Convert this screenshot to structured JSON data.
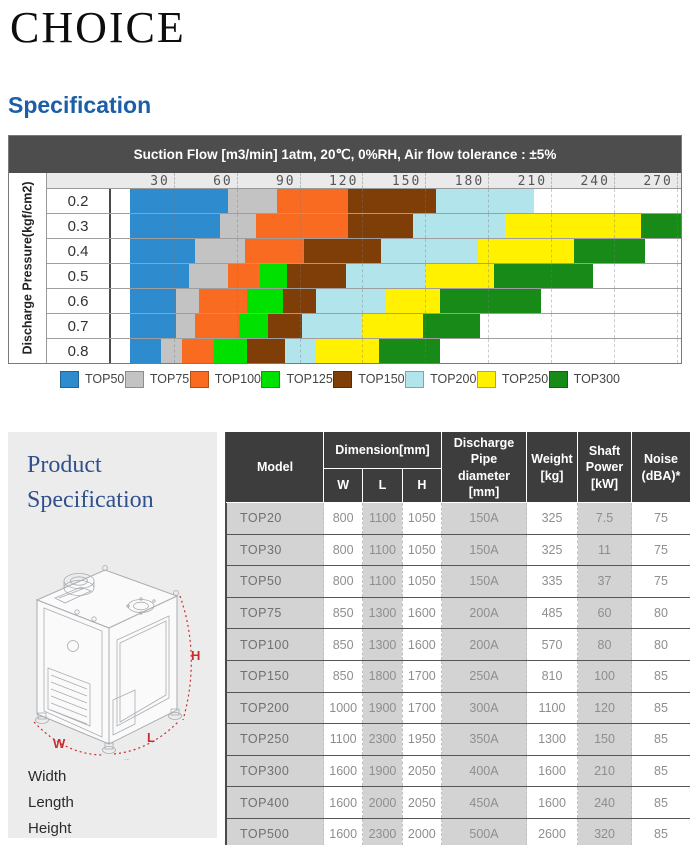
{
  "page": {
    "title": "CHOICE",
    "section_heading": "Specification"
  },
  "chart_data": {
    "type": "bar",
    "subtype": "horizontal-range-segments",
    "title": "Suction Flow [m3/min] 1atm, 20℃, 0%RH, Air flow tolerance : ±5%",
    "ylabel": "Discharge Pressure(kgf/cm2)",
    "xlabel": "Suction Flow [m3/min]",
    "x_ticks": [
      30,
      60,
      90,
      120,
      150,
      180,
      210,
      240,
      270
    ],
    "xlim": [
      0,
      272
    ],
    "grid": true,
    "legend_position": "bottom",
    "legend": [
      {
        "name": "TOP50",
        "color": "#2e8bce"
      },
      {
        "name": "TOP75",
        "color": "#c3c3c3"
      },
      {
        "name": "TOP100",
        "color": "#f96b20"
      },
      {
        "name": "TOP125",
        "color": "#00e100"
      },
      {
        "name": "TOP150",
        "color": "#7f3e08"
      },
      {
        "name": "TOP200",
        "color": "#b2e4ec"
      },
      {
        "name": "TOP250",
        "color": "#fff100"
      },
      {
        "name": "TOP300",
        "color": "#188a18"
      }
    ],
    "rows": [
      {
        "pressure": "0.2",
        "segments": [
          {
            "model": "TOP50",
            "from": 9,
            "to": 56
          },
          {
            "model": "TOP75",
            "from": 56,
            "to": 79
          },
          {
            "model": "TOP100",
            "from": 79,
            "to": 113
          },
          {
            "model": "TOP150",
            "from": 113,
            "to": 155
          },
          {
            "model": "TOP200",
            "from": 155,
            "to": 202
          }
        ]
      },
      {
        "pressure": "0.3",
        "segments": [
          {
            "model": "TOP50",
            "from": 9,
            "to": 52
          },
          {
            "model": "TOP75",
            "from": 52,
            "to": 69
          },
          {
            "model": "TOP100",
            "from": 69,
            "to": 113
          },
          {
            "model": "TOP150",
            "from": 113,
            "to": 144
          },
          {
            "model": "TOP200",
            "from": 144,
            "to": 188
          },
          {
            "model": "TOP250",
            "from": 188,
            "to": 253
          },
          {
            "model": "TOP300",
            "from": 253,
            "to": 272
          }
        ]
      },
      {
        "pressure": "0.4",
        "segments": [
          {
            "model": "TOP50",
            "from": 9,
            "to": 40
          },
          {
            "model": "TOP75",
            "from": 40,
            "to": 64
          },
          {
            "model": "TOP100",
            "from": 64,
            "to": 92
          },
          {
            "model": "TOP150",
            "from": 92,
            "to": 129
          },
          {
            "model": "TOP200",
            "from": 129,
            "to": 175
          },
          {
            "model": "TOP250",
            "from": 175,
            "to": 221
          },
          {
            "model": "TOP300",
            "from": 221,
            "to": 255
          }
        ]
      },
      {
        "pressure": "0.5",
        "segments": [
          {
            "model": "TOP50",
            "from": 9,
            "to": 37
          },
          {
            "model": "TOP75",
            "from": 37,
            "to": 56
          },
          {
            "model": "TOP100",
            "from": 56,
            "to": 71
          },
          {
            "model": "TOP125",
            "from": 71,
            "to": 84
          },
          {
            "model": "TOP150",
            "from": 84,
            "to": 112
          },
          {
            "model": "TOP200",
            "from": 112,
            "to": 150
          },
          {
            "model": "TOP250",
            "from": 150,
            "to": 183
          },
          {
            "model": "TOP300",
            "from": 183,
            "to": 230
          }
        ]
      },
      {
        "pressure": "0.6",
        "segments": [
          {
            "model": "TOP50",
            "from": 9,
            "to": 31
          },
          {
            "model": "TOP75",
            "from": 31,
            "to": 42
          },
          {
            "model": "TOP100",
            "from": 42,
            "to": 65
          },
          {
            "model": "TOP125",
            "from": 65,
            "to": 82
          },
          {
            "model": "TOP150",
            "from": 82,
            "to": 98
          },
          {
            "model": "TOP200",
            "from": 98,
            "to": 131
          },
          {
            "model": "TOP250",
            "from": 131,
            "to": 157
          },
          {
            "model": "TOP300",
            "from": 157,
            "to": 205
          }
        ]
      },
      {
        "pressure": "0.7",
        "segments": [
          {
            "model": "TOP50",
            "from": 9,
            "to": 31
          },
          {
            "model": "TOP75",
            "from": 31,
            "to": 40
          },
          {
            "model": "TOP100",
            "from": 40,
            "to": 61
          },
          {
            "model": "TOP125",
            "from": 61,
            "to": 75
          },
          {
            "model": "TOP150",
            "from": 75,
            "to": 91
          },
          {
            "model": "TOP200",
            "from": 91,
            "to": 120
          },
          {
            "model": "TOP250",
            "from": 120,
            "to": 149
          },
          {
            "model": "TOP300",
            "from": 149,
            "to": 176
          }
        ]
      },
      {
        "pressure": "0.8",
        "segments": [
          {
            "model": "TOP50",
            "from": 9,
            "to": 24
          },
          {
            "model": "TOP75",
            "from": 24,
            "to": 34
          },
          {
            "model": "TOP100",
            "from": 34,
            "to": 49
          },
          {
            "model": "TOP125",
            "from": 49,
            "to": 65
          },
          {
            "model": "TOP150",
            "from": 65,
            "to": 83
          },
          {
            "model": "TOP200",
            "from": 83,
            "to": 98
          },
          {
            "model": "TOP250",
            "from": 98,
            "to": 128
          },
          {
            "model": "TOP300",
            "from": 128,
            "to": 157
          }
        ]
      }
    ]
  },
  "product": {
    "heading_line1": "Product",
    "heading_line2": "Specification",
    "dim_w": "W",
    "dim_l": "L",
    "dim_h": "H",
    "dim_color": "#cb2d2d",
    "dim_labels": [
      "Width",
      "Length",
      "Height"
    ]
  },
  "table": {
    "header": {
      "model": "Model",
      "dimension_group": "Dimension[mm]",
      "w": "W",
      "l": "L",
      "h": "H",
      "discharge": "Discharge Pipe diameter [mm]",
      "weight": "Weight [kg]",
      "power": "Shaft Power [kW]",
      "noise": "Noise (dBA)*"
    },
    "rows": [
      {
        "model": "TOP20",
        "w": "800",
        "l": "1100",
        "h": "1050",
        "discharge": "150A",
        "weight": "325",
        "power": "7.5",
        "noise": "75"
      },
      {
        "model": "TOP30",
        "w": "800",
        "l": "1100",
        "h": "1050",
        "discharge": "150A",
        "weight": "325",
        "power": "11",
        "noise": "75"
      },
      {
        "model": "TOP50",
        "w": "800",
        "l": "1100",
        "h": "1050",
        "discharge": "150A",
        "weight": "335",
        "power": "37",
        "noise": "75"
      },
      {
        "model": "TOP75",
        "w": "850",
        "l": "1300",
        "h": "1600",
        "discharge": "200A",
        "weight": "485",
        "power": "60",
        "noise": "80"
      },
      {
        "model": "TOP100",
        "w": "850",
        "l": "1300",
        "h": "1600",
        "discharge": "200A",
        "weight": "570",
        "power": "80",
        "noise": "80"
      },
      {
        "model": "TOP150",
        "w": "850",
        "l": "1800",
        "h": "1700",
        "discharge": "250A",
        "weight": "810",
        "power": "100",
        "noise": "85"
      },
      {
        "model": "TOP200",
        "w": "1000",
        "l": "1900",
        "h": "1700",
        "discharge": "300A",
        "weight": "1100",
        "power": "120",
        "noise": "85"
      },
      {
        "model": "TOP250",
        "w": "1100",
        "l": "2300",
        "h": "1950",
        "discharge": "350A",
        "weight": "1300",
        "power": "150",
        "noise": "85"
      },
      {
        "model": "TOP300",
        "w": "1600",
        "l": "1900",
        "h": "2050",
        "discharge": "400A",
        "weight": "1600",
        "power": "210",
        "noise": "85"
      },
      {
        "model": "TOP400",
        "w": "1600",
        "l": "2000",
        "h": "2050",
        "discharge": "450A",
        "weight": "1600",
        "power": "240",
        "noise": "85"
      },
      {
        "model": "TOP500",
        "w": "1600",
        "l": "2300",
        "h": "2000",
        "discharge": "500A",
        "weight": "2600",
        "power": "320",
        "noise": "85"
      }
    ]
  }
}
